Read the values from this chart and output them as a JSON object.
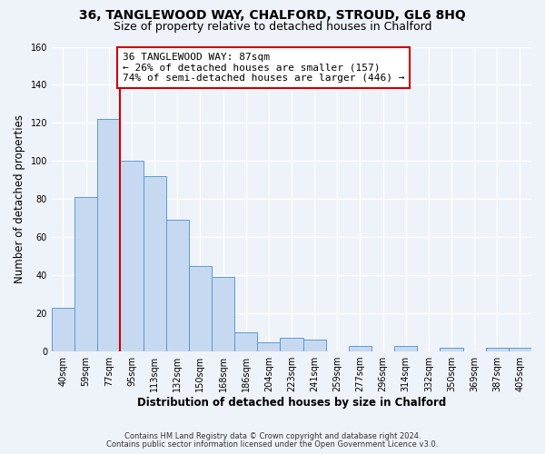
{
  "title_line1": "36, TANGLEWOOD WAY, CHALFORD, STROUD, GL6 8HQ",
  "title_line2": "Size of property relative to detached houses in Chalford",
  "xlabel": "Distribution of detached houses by size in Chalford",
  "ylabel": "Number of detached properties",
  "bar_labels": [
    "40sqm",
    "59sqm",
    "77sqm",
    "95sqm",
    "113sqm",
    "132sqm",
    "150sqm",
    "168sqm",
    "186sqm",
    "204sqm",
    "223sqm",
    "241sqm",
    "259sqm",
    "277sqm",
    "296sqm",
    "314sqm",
    "332sqm",
    "350sqm",
    "369sqm",
    "387sqm",
    "405sqm"
  ],
  "bar_values": [
    23,
    81,
    122,
    100,
    92,
    69,
    45,
    39,
    10,
    5,
    7,
    6,
    0,
    3,
    0,
    3,
    0,
    2,
    0,
    2,
    2
  ],
  "bar_color": "#c6d9f0",
  "bar_edge_color": "#5b9bd5",
  "vline_x": 2.5,
  "vline_color": "#cc0000",
  "annotation_text": "36 TANGLEWOOD WAY: 87sqm\n← 26% of detached houses are smaller (157)\n74% of semi-detached houses are larger (446) →",
  "annotation_box_color": "#ffffff",
  "annotation_box_edge": "#cc0000",
  "ylim": [
    0,
    160
  ],
  "yticks": [
    0,
    20,
    40,
    60,
    80,
    100,
    120,
    140,
    160
  ],
  "footer_line1": "Contains HM Land Registry data © Crown copyright and database right 2024.",
  "footer_line2": "Contains public sector information licensed under the Open Government Licence v3.0.",
  "background_color": "#eef2f9",
  "grid_color": "#ffffff",
  "title_fontsize": 10,
  "subtitle_fontsize": 9,
  "axis_label_fontsize": 8.5,
  "tick_fontsize": 7,
  "annotation_fontsize": 8,
  "footer_fontsize": 6
}
